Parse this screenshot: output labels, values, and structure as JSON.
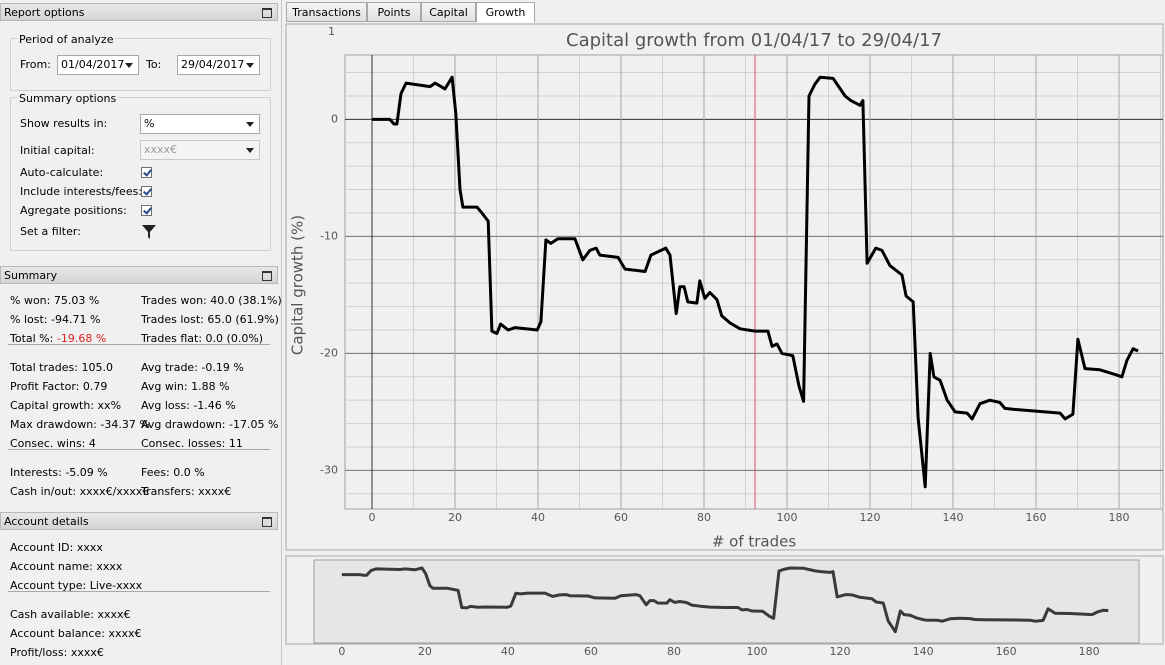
{
  "left_panel": {
    "report_options": {
      "title": "Report options",
      "period": {
        "title": "Period of analyze",
        "from_label": "From:",
        "from_value": "01/04/2017",
        "to_label": "To:",
        "to_value": "29/04/2017"
      },
      "summary_options": {
        "title": "Summary options",
        "show_results_label": "Show results in:",
        "show_results_value": "%",
        "initial_capital_label": "Initial capital:",
        "initial_capital_value": "xxxx€",
        "auto_calculate_label": "Auto-calculate:",
        "include_fees_label": "Include interests/fees:",
        "aggregate_label": "Agregate positions:",
        "filter_label": "Set a filter:"
      }
    },
    "summary": {
      "title": "Summary",
      "groups": [
        [
          [
            {
              "label": "% won:",
              "value": "75.03 %"
            },
            {
              "label": "Trades won:",
              "value": "40.0 (38.1%)"
            }
          ],
          [
            {
              "label": "% lost:",
              "value": "-94.71 %"
            },
            {
              "label": "Trades lost:",
              "value": "65.0 (61.9%)"
            }
          ],
          [
            {
              "label": "Total %:",
              "value": "-19.68 %",
              "color": "#e02020"
            },
            {
              "label": "Trades flat:",
              "value": "0.0 (0.0%)"
            }
          ]
        ],
        [
          [
            {
              "label": "Total trades:",
              "value": "105.0"
            },
            {
              "label": "Avg trade:",
              "value": "-0.19 %"
            }
          ],
          [
            {
              "label": "Profit Factor:",
              "value": "0.79"
            },
            {
              "label": "Avg win:",
              "value": "1.88 %"
            }
          ],
          [
            {
              "label": "Capital growth:",
              "value": "xx%"
            },
            {
              "label": "Avg loss:",
              "value": "-1.46 %"
            }
          ],
          [
            {
              "label": "Max drawdown:",
              "value": "-34.37 %"
            },
            {
              "label": "Avg drawdown:",
              "value": "-17.05 %"
            }
          ],
          [
            {
              "label": "Consec. wins:",
              "value": "4"
            },
            {
              "label": "Consec. losses:",
              "value": "11"
            }
          ]
        ],
        [
          [
            {
              "label": "Interests:",
              "value": "-5.09 %"
            },
            {
              "label": "Fees:",
              "value": "0.0 %"
            }
          ],
          [
            {
              "label": "Cash in/out:",
              "value": "xxxx€/xxxx€"
            },
            {
              "label": "Transfers:",
              "value": "xxxx€"
            }
          ]
        ]
      ]
    },
    "account_details": {
      "title": "Account details",
      "groups": [
        [
          [
            {
              "label": "Account ID:",
              "value": "xxxx"
            }
          ],
          [
            {
              "label": "Account name:",
              "value": "xxxx"
            }
          ],
          [
            {
              "label": "Account type:",
              "value": "Live-xxxx"
            }
          ]
        ],
        [
          [
            {
              "label": "Cash available:",
              "value": "xxxx€"
            }
          ],
          [
            {
              "label": "Account balance:",
              "value": "xxxx€"
            }
          ],
          [
            {
              "label": "Profit/loss:",
              "value": "xxxx€"
            }
          ]
        ]
      ]
    }
  },
  "tabs": [
    "Transactions",
    "Points",
    "Capital",
    "Growth"
  ],
  "active_tab": 3,
  "chart_data": {
    "type": "line",
    "title": "Capital growth from 01/04/17 to 29/04/17",
    "x_label": "# of trades",
    "y_label": "Capital growth (%)",
    "corner_label": "1",
    "x": [
      0,
      4.3,
      5.3,
      6,
      7,
      8.2,
      14,
      15.2,
      17.6,
      19.3,
      20.2,
      21.2,
      21.9,
      25.3,
      26.7,
      28,
      28.9,
      30.1,
      31,
      32.8,
      34.5,
      39.8,
      40.7,
      41.9,
      43.1,
      44.8,
      48.9,
      50.8,
      52.5,
      54,
      54.9,
      59.3,
      61,
      65.8,
      67.2,
      70.8,
      71.8,
      73.3,
      74.2,
      75.2,
      76.1,
      78.3,
      79,
      80.2,
      81.4,
      83.1,
      84.3,
      86.3,
      88.7,
      92.3,
      95.4,
      96.4,
      97.6,
      98.8,
      101.4,
      102.9,
      104,
      105.3,
      106.7,
      108,
      111.1,
      114,
      115.4,
      117.6,
      118.3,
      119.3,
      121.4,
      122.9,
      124.8,
      127.7,
      128.7,
      130.4,
      131.6,
      133.3,
      134.5,
      135.4,
      136.9,
      138.6,
      140.5,
      143.4,
      144.6,
      146.5,
      148.9,
      151.3,
      152.5,
      155,
      165.8,
      167,
      168.9,
      170.1,
      171.8,
      175.4,
      179,
      180.7,
      181.9,
      183.4,
      184.6
    ],
    "series": [
      {
        "color": "#000000",
        "values": [
          0,
          0,
          -0.4,
          -0.4,
          2.2,
          3.1,
          2.8,
          3.1,
          2.6,
          3.6,
          0.5,
          -6,
          -7.5,
          -7.5,
          -8.1,
          -8.7,
          -18.1,
          -18.3,
          -17.5,
          -18,
          -17.8,
          -18,
          -17.3,
          -10.3,
          -10.6,
          -10.2,
          -10.2,
          -12,
          -11.2,
          -11,
          -11.6,
          -11.8,
          -12.8,
          -13,
          -11.6,
          -11,
          -11.6,
          -16.6,
          -14.3,
          -14.3,
          -15.6,
          -15.7,
          -13.8,
          -15.3,
          -14.8,
          -15.4,
          -16.8,
          -17.4,
          -17.9,
          -18.1,
          -18.1,
          -19.4,
          -19.2,
          -20,
          -20.2,
          -22.8,
          -24.1,
          2,
          3,
          3.6,
          3.5,
          2,
          1.6,
          1.2,
          1.6,
          -12.3,
          -11,
          -11.2,
          -12.5,
          -13.3,
          -15.1,
          -15.6,
          -25.5,
          -31.4,
          -20,
          -22,
          -22.3,
          -24,
          -25,
          -25.1,
          -25.6,
          -24.3,
          -24,
          -24.2,
          -24.7,
          -24.8,
          -25.1,
          -25.6,
          -25.2,
          -18.8,
          -21.3,
          -21.4,
          -21.8,
          -22,
          -20.6,
          -19.6,
          -19.8
        ]
      }
    ],
    "xlim": [
      -6.5,
      190.6
    ],
    "ylim": [
      -33.3,
      5.5
    ],
    "xticks": [
      0,
      20,
      40,
      60,
      80,
      100,
      120,
      140,
      160,
      180
    ],
    "yticks": [
      -30,
      -20,
      -10,
      0
    ],
    "x_minor_step": 10,
    "y_minor_step": 2,
    "grid": true,
    "marker_x": 92.3,
    "marker_color": "#e0506a",
    "overview": {
      "corner_label": "1",
      "xlim": [
        -6.7,
        192
      ],
      "ylim": [
        -37.6,
        8
      ],
      "color": "#3a3a3a"
    }
  }
}
